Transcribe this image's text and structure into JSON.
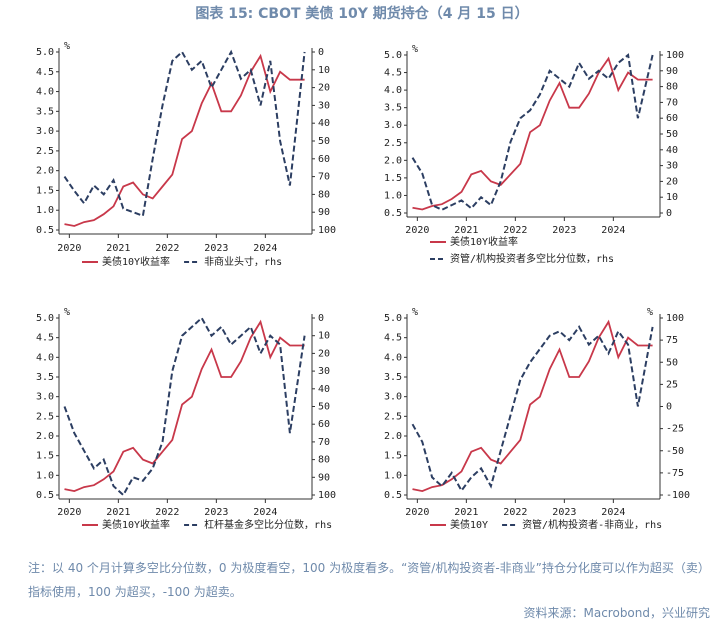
{
  "figure_title": "图表 15: CBOT 美债 10Y 期货持仓（4 月 15 日）",
  "note": "注：以 40 个月计算多空比分位数，0 为极度看空，100 为极度看多。“资管/机构投资者-非商业”持仓分化度可以作为超买（卖）指标使用，100 为超买，-100 为超卖。",
  "source": "资料来源：Macrobond，兴业研究",
  "chart_data": [
    {
      "type": "line",
      "y_unit": "%",
      "x": [
        2019.9,
        2020.1,
        2020.3,
        2020.5,
        2020.7,
        2020.9,
        2021.1,
        2021.3,
        2021.5,
        2021.7,
        2021.9,
        2022.1,
        2022.3,
        2022.5,
        2022.7,
        2022.9,
        2023.1,
        2023.3,
        2023.5,
        2023.7,
        2023.9,
        2024.1,
        2024.3,
        2024.5,
        2024.8
      ],
      "xlim": [
        2019.85,
        2024.85
      ],
      "xticks": [
        2020,
        2021,
        2022,
        2023,
        2024
      ],
      "ylim": [
        0.5,
        5.0
      ],
      "yticks": [
        0.5,
        {
          "value": 1,
          "label": "1.0"
        },
        1.5,
        {
          "value": 2,
          "label": "2.0"
        },
        2.5,
        {
          "value": 3,
          "label": "3.0"
        },
        3.5,
        {
          "value": 4,
          "label": "4.0"
        },
        4.5,
        {
          "value": 5,
          "label": "5.0"
        }
      ],
      "y2lim": [
        100,
        0
      ],
      "y2ticks": [
        0,
        10,
        20,
        30,
        40,
        50,
        60,
        70,
        80,
        90,
        100
      ],
      "series": [
        {
          "name": "美债10Y收益率",
          "color": "#c8384a",
          "style": "solid",
          "values": [
            0.65,
            0.6,
            0.7,
            0.75,
            0.9,
            1.1,
            1.6,
            1.7,
            1.4,
            1.3,
            1.6,
            1.9,
            2.8,
            3.0,
            3.7,
            4.2,
            3.5,
            3.5,
            3.9,
            4.5,
            4.9,
            4.0,
            4.5,
            4.3,
            4.3
          ]
        },
        {
          "name": "非商业头寸，rhs",
          "color": "#2c3e62",
          "style": "dashed",
          "axis": "y2",
          "values": [
            70,
            78,
            85,
            75,
            80,
            72,
            88,
            90,
            92,
            60,
            30,
            5,
            0,
            10,
            5,
            20,
            10,
            0,
            15,
            10,
            30,
            5,
            50,
            75,
            0
          ]
        }
      ]
    },
    {
      "type": "line",
      "y_unit": "%",
      "x": [
        2019.9,
        2020.1,
        2020.3,
        2020.5,
        2020.7,
        2020.9,
        2021.1,
        2021.3,
        2021.5,
        2021.7,
        2021.9,
        2022.1,
        2022.3,
        2022.5,
        2022.7,
        2022.9,
        2023.1,
        2023.3,
        2023.5,
        2023.7,
        2023.9,
        2024.1,
        2024.3,
        2024.5,
        2024.8
      ],
      "xlim": [
        2019.85,
        2024.85
      ],
      "xticks": [
        2020,
        2021,
        2022,
        2023,
        2024
      ],
      "ylim": [
        0.5,
        5.0
      ],
      "yticks": [
        0.5,
        {
          "value": 1,
          "label": "1.0"
        },
        1.5,
        {
          "value": 2,
          "label": "2.0"
        },
        2.5,
        {
          "value": 3,
          "label": "3.0"
        },
        3.5,
        {
          "value": 4,
          "label": "4.0"
        },
        4.5,
        {
          "value": 5,
          "label": "5.0"
        }
      ],
      "y2lim": [
        0,
        100
      ],
      "y2ticks": [
        0,
        10,
        20,
        30,
        40,
        50,
        60,
        70,
        80,
        90,
        100
      ],
      "series": [
        {
          "name": "美债10Y收益率",
          "color": "#c8384a",
          "style": "solid",
          "values": [
            0.65,
            0.6,
            0.7,
            0.75,
            0.9,
            1.1,
            1.6,
            1.7,
            1.4,
            1.3,
            1.6,
            1.9,
            2.8,
            3.0,
            3.7,
            4.2,
            3.5,
            3.5,
            3.9,
            4.5,
            4.9,
            4.0,
            4.5,
            4.3,
            4.3
          ]
        },
        {
          "name": "资管/机构投资者多空比分位数，rhs",
          "color": "#2c3e62",
          "style": "dashed",
          "axis": "y2",
          "values": [
            35,
            25,
            5,
            2,
            5,
            8,
            3,
            10,
            5,
            20,
            45,
            60,
            65,
            75,
            90,
            85,
            80,
            95,
            85,
            90,
            85,
            95,
            100,
            60,
            100
          ]
        }
      ]
    },
    {
      "type": "line",
      "y_unit": "%",
      "x": [
        2019.9,
        2020.1,
        2020.3,
        2020.5,
        2020.7,
        2020.9,
        2021.1,
        2021.3,
        2021.5,
        2021.7,
        2021.9,
        2022.1,
        2022.3,
        2022.5,
        2022.7,
        2022.9,
        2023.1,
        2023.3,
        2023.5,
        2023.7,
        2023.9,
        2024.1,
        2024.3,
        2024.5,
        2024.8
      ],
      "xlim": [
        2019.85,
        2024.85
      ],
      "xticks": [
        2020,
        2021,
        2022,
        2023,
        2024
      ],
      "ylim": [
        0.5,
        5.0
      ],
      "yticks": [
        0.5,
        {
          "value": 1,
          "label": "1.0"
        },
        1.5,
        {
          "value": 2,
          "label": "2.0"
        },
        2.5,
        {
          "value": 3,
          "label": "3.0"
        },
        3.5,
        {
          "value": 4,
          "label": "4.0"
        },
        4.5,
        {
          "value": 5,
          "label": "5.0"
        }
      ],
      "y2lim": [
        100,
        0
      ],
      "y2ticks": [
        0,
        10,
        20,
        30,
        40,
        50,
        60,
        70,
        80,
        90,
        100
      ],
      "series": [
        {
          "name": "美债10Y收益率",
          "color": "#c8384a",
          "style": "solid",
          "values": [
            0.65,
            0.6,
            0.7,
            0.75,
            0.9,
            1.1,
            1.6,
            1.7,
            1.4,
            1.3,
            1.6,
            1.9,
            2.8,
            3.0,
            3.7,
            4.2,
            3.5,
            3.5,
            3.9,
            4.5,
            4.9,
            4.0,
            4.5,
            4.3,
            4.3
          ]
        },
        {
          "name": "杠杆基金多空比分位数，rhs",
          "color": "#2c3e62",
          "style": "dashed",
          "axis": "y2",
          "values": [
            50,
            65,
            75,
            85,
            80,
            95,
            100,
            90,
            92,
            85,
            70,
            30,
            10,
            5,
            0,
            10,
            5,
            15,
            10,
            5,
            20,
            10,
            15,
            65,
            10
          ]
        }
      ]
    },
    {
      "type": "line",
      "y_unit": "%",
      "y2_unit": "%",
      "x": [
        2019.9,
        2020.1,
        2020.3,
        2020.5,
        2020.7,
        2020.9,
        2021.1,
        2021.3,
        2021.5,
        2021.7,
        2021.9,
        2022.1,
        2022.3,
        2022.5,
        2022.7,
        2022.9,
        2023.1,
        2023.3,
        2023.5,
        2023.7,
        2023.9,
        2024.1,
        2024.3,
        2024.5,
        2024.8
      ],
      "xlim": [
        2019.85,
        2024.85
      ],
      "xticks": [
        2020,
        2021,
        2022,
        2023,
        2024
      ],
      "ylim": [
        0.5,
        5.0
      ],
      "yticks": [
        0.5,
        {
          "value": 1,
          "label": "1.0"
        },
        1.5,
        {
          "value": 2,
          "label": "2.0"
        },
        2.5,
        {
          "value": 3,
          "label": "3.0"
        },
        3.5,
        {
          "value": 4,
          "label": "4.0"
        },
        4.5,
        {
          "value": 5,
          "label": "5.0"
        }
      ],
      "y2lim": [
        -100,
        100
      ],
      "y2ticks": [
        -100,
        -75,
        -50,
        -25,
        0,
        25,
        50,
        75,
        100
      ],
      "series": [
        {
          "name": "美债10Y",
          "color": "#c8384a",
          "style": "solid",
          "values": [
            0.65,
            0.6,
            0.7,
            0.75,
            0.9,
            1.1,
            1.6,
            1.7,
            1.4,
            1.3,
            1.6,
            1.9,
            2.8,
            3.0,
            3.7,
            4.2,
            3.5,
            3.5,
            3.9,
            4.5,
            4.9,
            4.0,
            4.5,
            4.3,
            4.3
          ]
        },
        {
          "name": "资管/机构投资者-非商业，rhs",
          "color": "#2c3e62",
          "style": "dashed",
          "axis": "y2",
          "values": [
            -20,
            -40,
            -80,
            -90,
            -75,
            -95,
            -80,
            -70,
            -90,
            -50,
            -10,
            30,
            50,
            65,
            80,
            85,
            75,
            90,
            70,
            80,
            60,
            85,
            70,
            0,
            90
          ]
        }
      ]
    }
  ]
}
